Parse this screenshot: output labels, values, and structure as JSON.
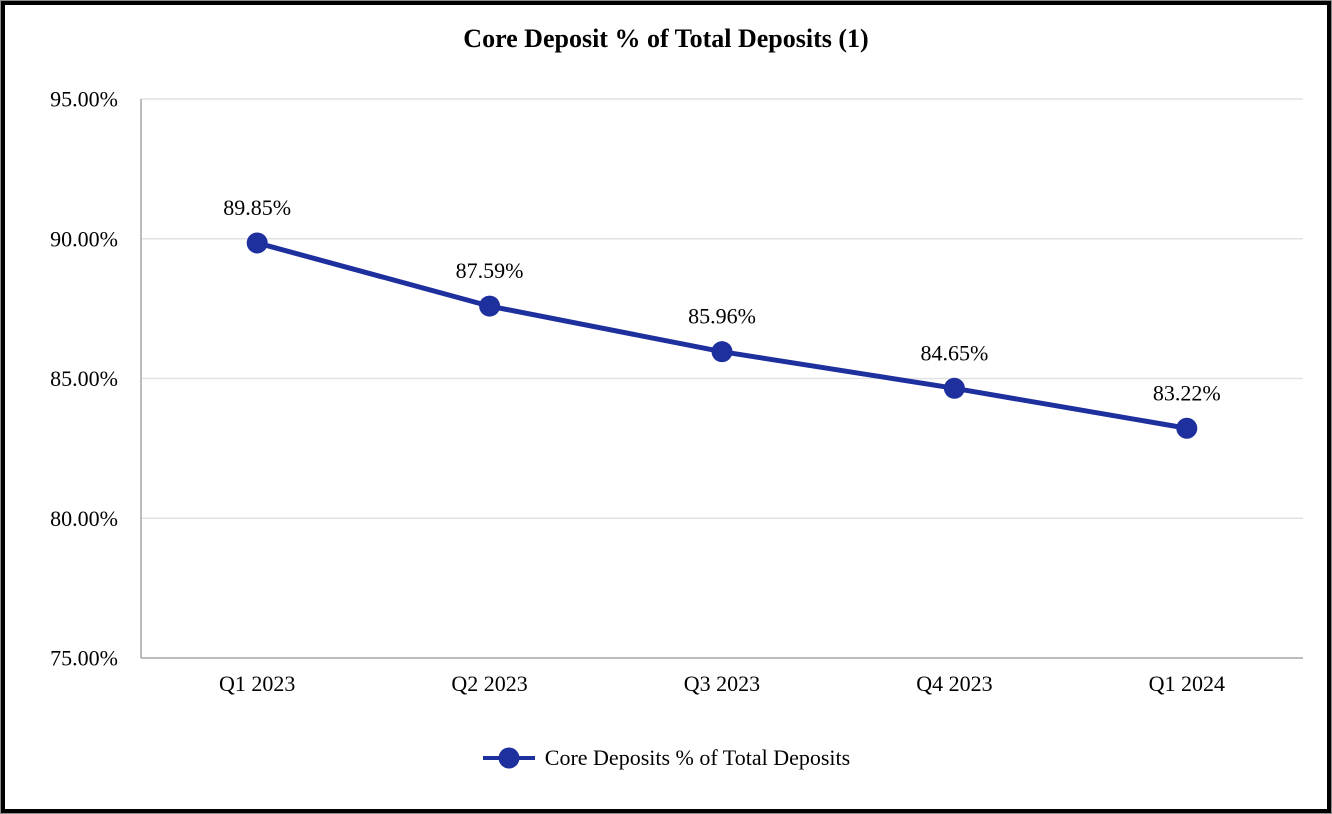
{
  "title": "Core Deposit % of Total Deposits (1)",
  "legend": {
    "label": "Core Deposits % of Total Deposits",
    "marker": "line-circle-marker"
  },
  "colors": {
    "series": "#1e2f9e",
    "gridline": "#e2e2e2",
    "axis_line": "#a6a6a6",
    "text": "#000000",
    "frame_border": "#000000"
  },
  "chart_data": {
    "type": "line",
    "title": "Core Deposit % of Total Deposits (1)",
    "categories": [
      "Q1 2023",
      "Q2 2023",
      "Q3 2023",
      "Q4 2023",
      "Q1 2024"
    ],
    "series": [
      {
        "name": "Core Deposits % of Total Deposits",
        "values": [
          89.85,
          87.59,
          85.96,
          84.65,
          83.22
        ]
      }
    ],
    "data_labels": [
      "89.85%",
      "87.59%",
      "85.96%",
      "84.65%",
      "83.22%"
    ],
    "xlabel": "",
    "ylabel": "",
    "ylim": [
      75,
      95
    ],
    "yticks": [
      95,
      90,
      85,
      80,
      75
    ],
    "ytick_labels": [
      "95.00%",
      "90.00%",
      "85.00%",
      "80.00%",
      "75.00%"
    ],
    "grid": "horizontal",
    "legend_position": "bottom",
    "marker": "circle"
  }
}
